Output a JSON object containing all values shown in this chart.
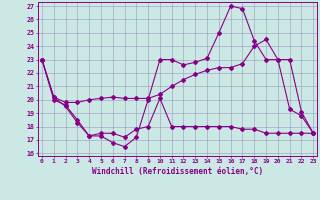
{
  "xlabel": "Windchill (Refroidissement éolien,°C)",
  "background_color": "#cce8e4",
  "grid_color": "#9999bb",
  "line_color": "#880088",
  "ylim": [
    16,
    27
  ],
  "yticks": [
    16,
    17,
    18,
    19,
    20,
    21,
    22,
    23,
    24,
    25,
    26,
    27
  ],
  "xticks": [
    0,
    1,
    2,
    3,
    4,
    5,
    6,
    7,
    8,
    9,
    10,
    11,
    12,
    13,
    14,
    15,
    16,
    17,
    18,
    19,
    20,
    21,
    22,
    23
  ],
  "line1_x": [
    0,
    1,
    2,
    3,
    4,
    5,
    6,
    7,
    8,
    9,
    10,
    11,
    12,
    13,
    14,
    15,
    16,
    17,
    18,
    19,
    20,
    21,
    22,
    23
  ],
  "line1_y": [
    23,
    20.2,
    19.5,
    18.3,
    17.3,
    17.3,
    16.8,
    16.5,
    17.2,
    20.0,
    23.0,
    23.0,
    22.6,
    22.8,
    23.1,
    25.0,
    27.0,
    26.8,
    24.4,
    23.0,
    23.0,
    19.3,
    18.8,
    17.5
  ],
  "line2_x": [
    0,
    1,
    2,
    3,
    4,
    5,
    6,
    7,
    8,
    9,
    10,
    11,
    12,
    13,
    14,
    15,
    16,
    17,
    18,
    19,
    20,
    21,
    22,
    23
  ],
  "line2_y": [
    23,
    20.2,
    19.8,
    19.8,
    20.0,
    20.1,
    20.2,
    20.1,
    20.1,
    20.1,
    20.4,
    21.0,
    21.5,
    21.9,
    22.2,
    22.4,
    22.4,
    22.7,
    24.0,
    24.5,
    23.0,
    23.0,
    19.1,
    17.5
  ],
  "line3_x": [
    0,
    1,
    2,
    3,
    4,
    5,
    6,
    7,
    8,
    9,
    10,
    11,
    12,
    13,
    14,
    15,
    16,
    17,
    18,
    19,
    20,
    21,
    22,
    23
  ],
  "line3_y": [
    23,
    20.0,
    19.6,
    18.5,
    17.3,
    17.5,
    17.5,
    17.2,
    17.8,
    18.0,
    20.1,
    18.0,
    18.0,
    18.0,
    18.0,
    18.0,
    18.0,
    17.8,
    17.8,
    17.5,
    17.5,
    17.5,
    17.5,
    17.5
  ]
}
